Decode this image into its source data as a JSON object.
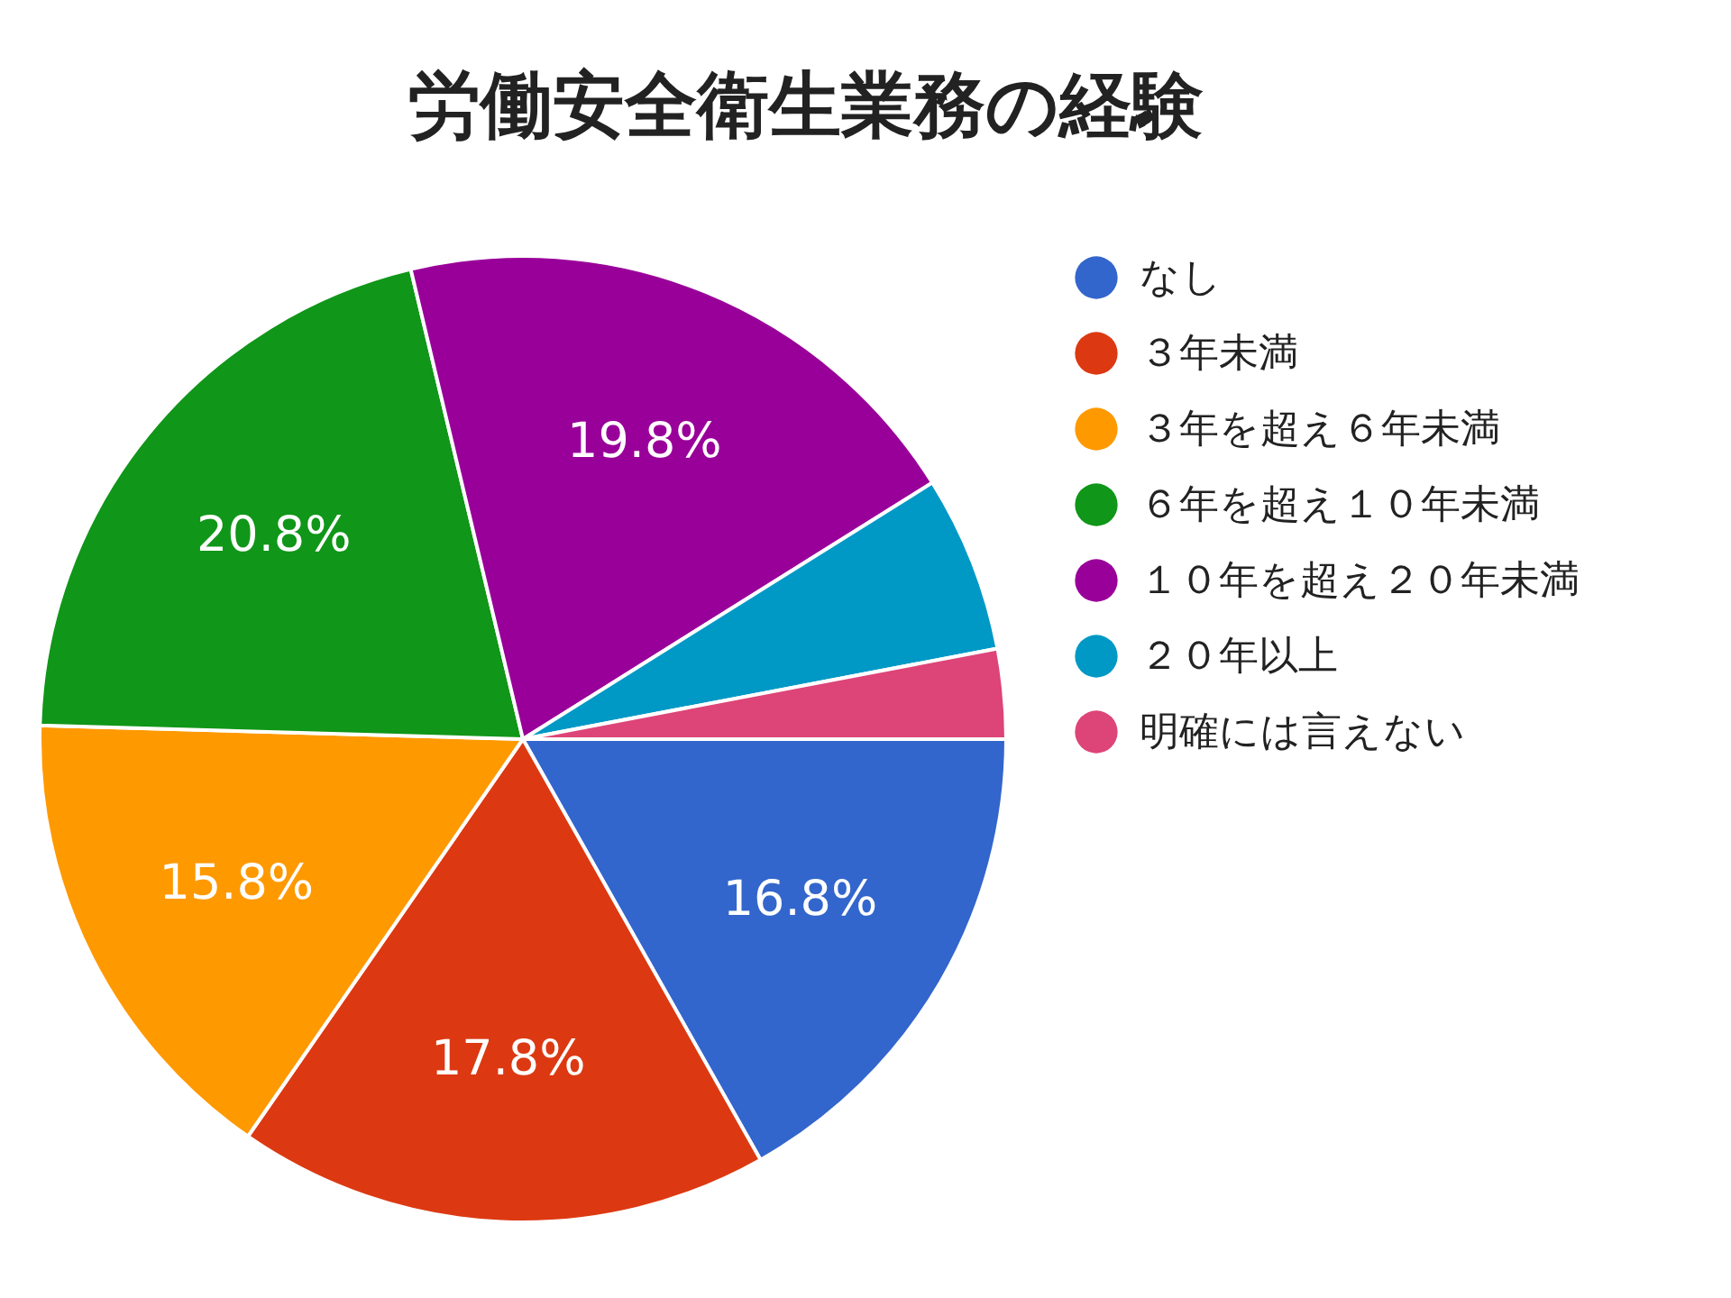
{
  "chart_data": {
    "type": "pie",
    "title": "労働安全衛生業務の経験",
    "categories": [
      "なし",
      "３年未満",
      "３年を超え６年未満",
      "６年を超え１０年未満",
      "１０年を超え２０年未満",
      "２０年以上",
      "明確には言えない"
    ],
    "values": [
      16.8,
      17.8,
      15.8,
      20.8,
      19.8,
      5.9,
      3.0
    ],
    "colors": [
      "#3366cc",
      "#dc3912",
      "#ff9900",
      "#109618",
      "#990099",
      "#0099c6",
      "#dd4477"
    ],
    "value_labels": [
      "16.8%",
      "17.8%",
      "15.8%",
      "20.8%",
      "19.8%",
      null,
      null
    ],
    "legend": "right"
  }
}
